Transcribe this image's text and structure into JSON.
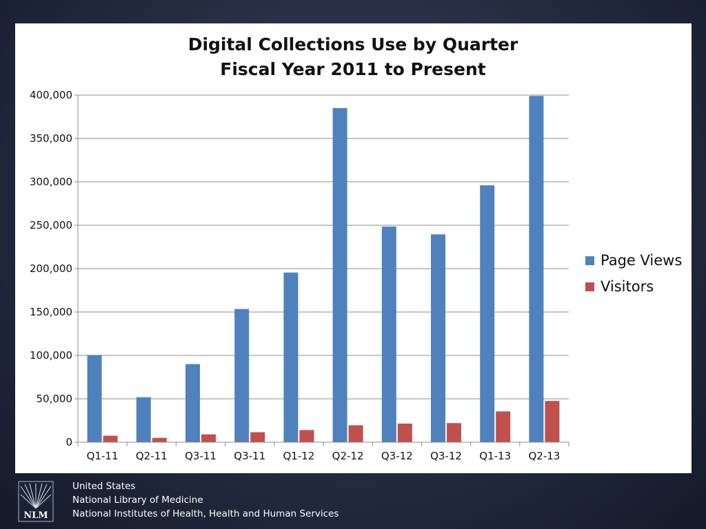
{
  "chart_data": {
    "type": "bar",
    "title": [
      "Digital Collections Use by Quarter",
      "Fiscal Year 2011 to Present"
    ],
    "categories": [
      "Q1-11",
      "Q2-11",
      "Q3-11",
      "Q3-11",
      "Q1-12",
      "Q2-12",
      "Q3-12",
      "Q3-12",
      "Q1-13",
      "Q2-13"
    ],
    "series": [
      {
        "name": "Page Views",
        "color": "#4f81bd",
        "values": [
          100500,
          51800,
          90000,
          153500,
          195500,
          385000,
          248500,
          239500,
          296000,
          399000
        ]
      },
      {
        "name": "Visitors",
        "color": "#c0504d",
        "values": [
          7500,
          5000,
          9000,
          11500,
          14000,
          19500,
          21500,
          22000,
          35500,
          47500
        ]
      }
    ],
    "ylim": [
      0,
      400000
    ],
    "yticks": [
      0,
      50000,
      100000,
      150000,
      200000,
      250000,
      300000,
      350000,
      400000
    ],
    "ytick_labels": [
      "0",
      "50,000",
      "100,000",
      "150,000",
      "200,000",
      "250,000",
      "300,000",
      "350,000",
      "400,000"
    ],
    "grid": true,
    "legend_position": "right"
  },
  "footer": {
    "logo_text": "NLM",
    "lines": [
      "United States",
      "National Library of Medicine",
      "National Institutes of Health, Health and Human Services"
    ]
  }
}
